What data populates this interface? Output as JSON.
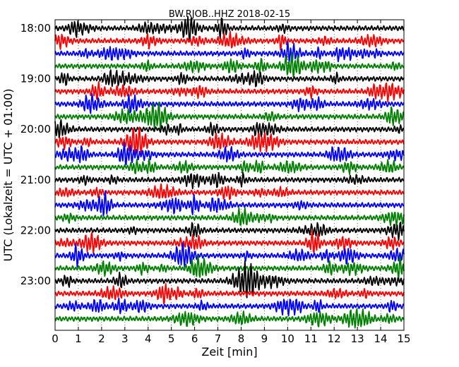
{
  "chart_data": {
    "type": "line",
    "title": "BW.RJOB..HHZ 2018-02-15",
    "xlabel": "Zeit  [min]",
    "ylabel": "UTC (Lokalzeit = UTC + 01:00)",
    "xlim": [
      0,
      15
    ],
    "x_ticks": [
      "0",
      "1",
      "2",
      "3",
      "4",
      "5",
      "6",
      "7",
      "8",
      "9",
      "10",
      "11",
      "12",
      "13",
      "14",
      "15"
    ],
    "y_ticks": [
      "18:00",
      "19:00",
      "20:00",
      "21:00",
      "22:00",
      "23:00"
    ],
    "traces_per_hour": 4,
    "trace_count": 24,
    "grid": true,
    "colors": [
      "#000000",
      "#ff0000",
      "#0000ff",
      "#008000"
    ]
  }
}
